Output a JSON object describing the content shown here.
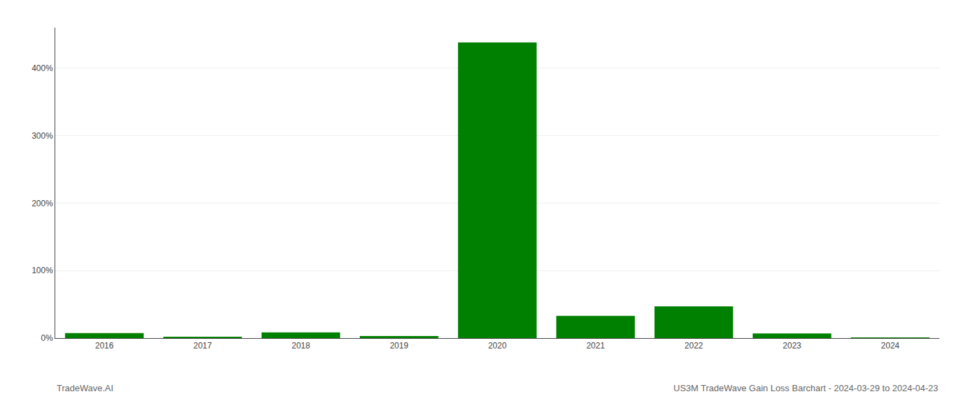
{
  "chart_data": {
    "type": "bar",
    "categories": [
      "2016",
      "2017",
      "2018",
      "2019",
      "2020",
      "2021",
      "2022",
      "2023",
      "2024"
    ],
    "values": [
      7.5,
      2.0,
      8.5,
      3.0,
      438.0,
      33.0,
      47.0,
      7.0,
      0.5
    ],
    "color": "#008000",
    "ylim": [
      0,
      460
    ],
    "yticks": [
      {
        "value": 0,
        "label": "0%"
      },
      {
        "value": 100,
        "label": "100%"
      },
      {
        "value": 200,
        "label": "200%"
      },
      {
        "value": 300,
        "label": "300%"
      },
      {
        "value": 400,
        "label": "400%"
      }
    ],
    "grid": true,
    "annotations": [
      "TradeWave.AI",
      "US3M TradeWave Gain Loss Barchart - 2024-03-29 to 2024-04-23"
    ]
  }
}
